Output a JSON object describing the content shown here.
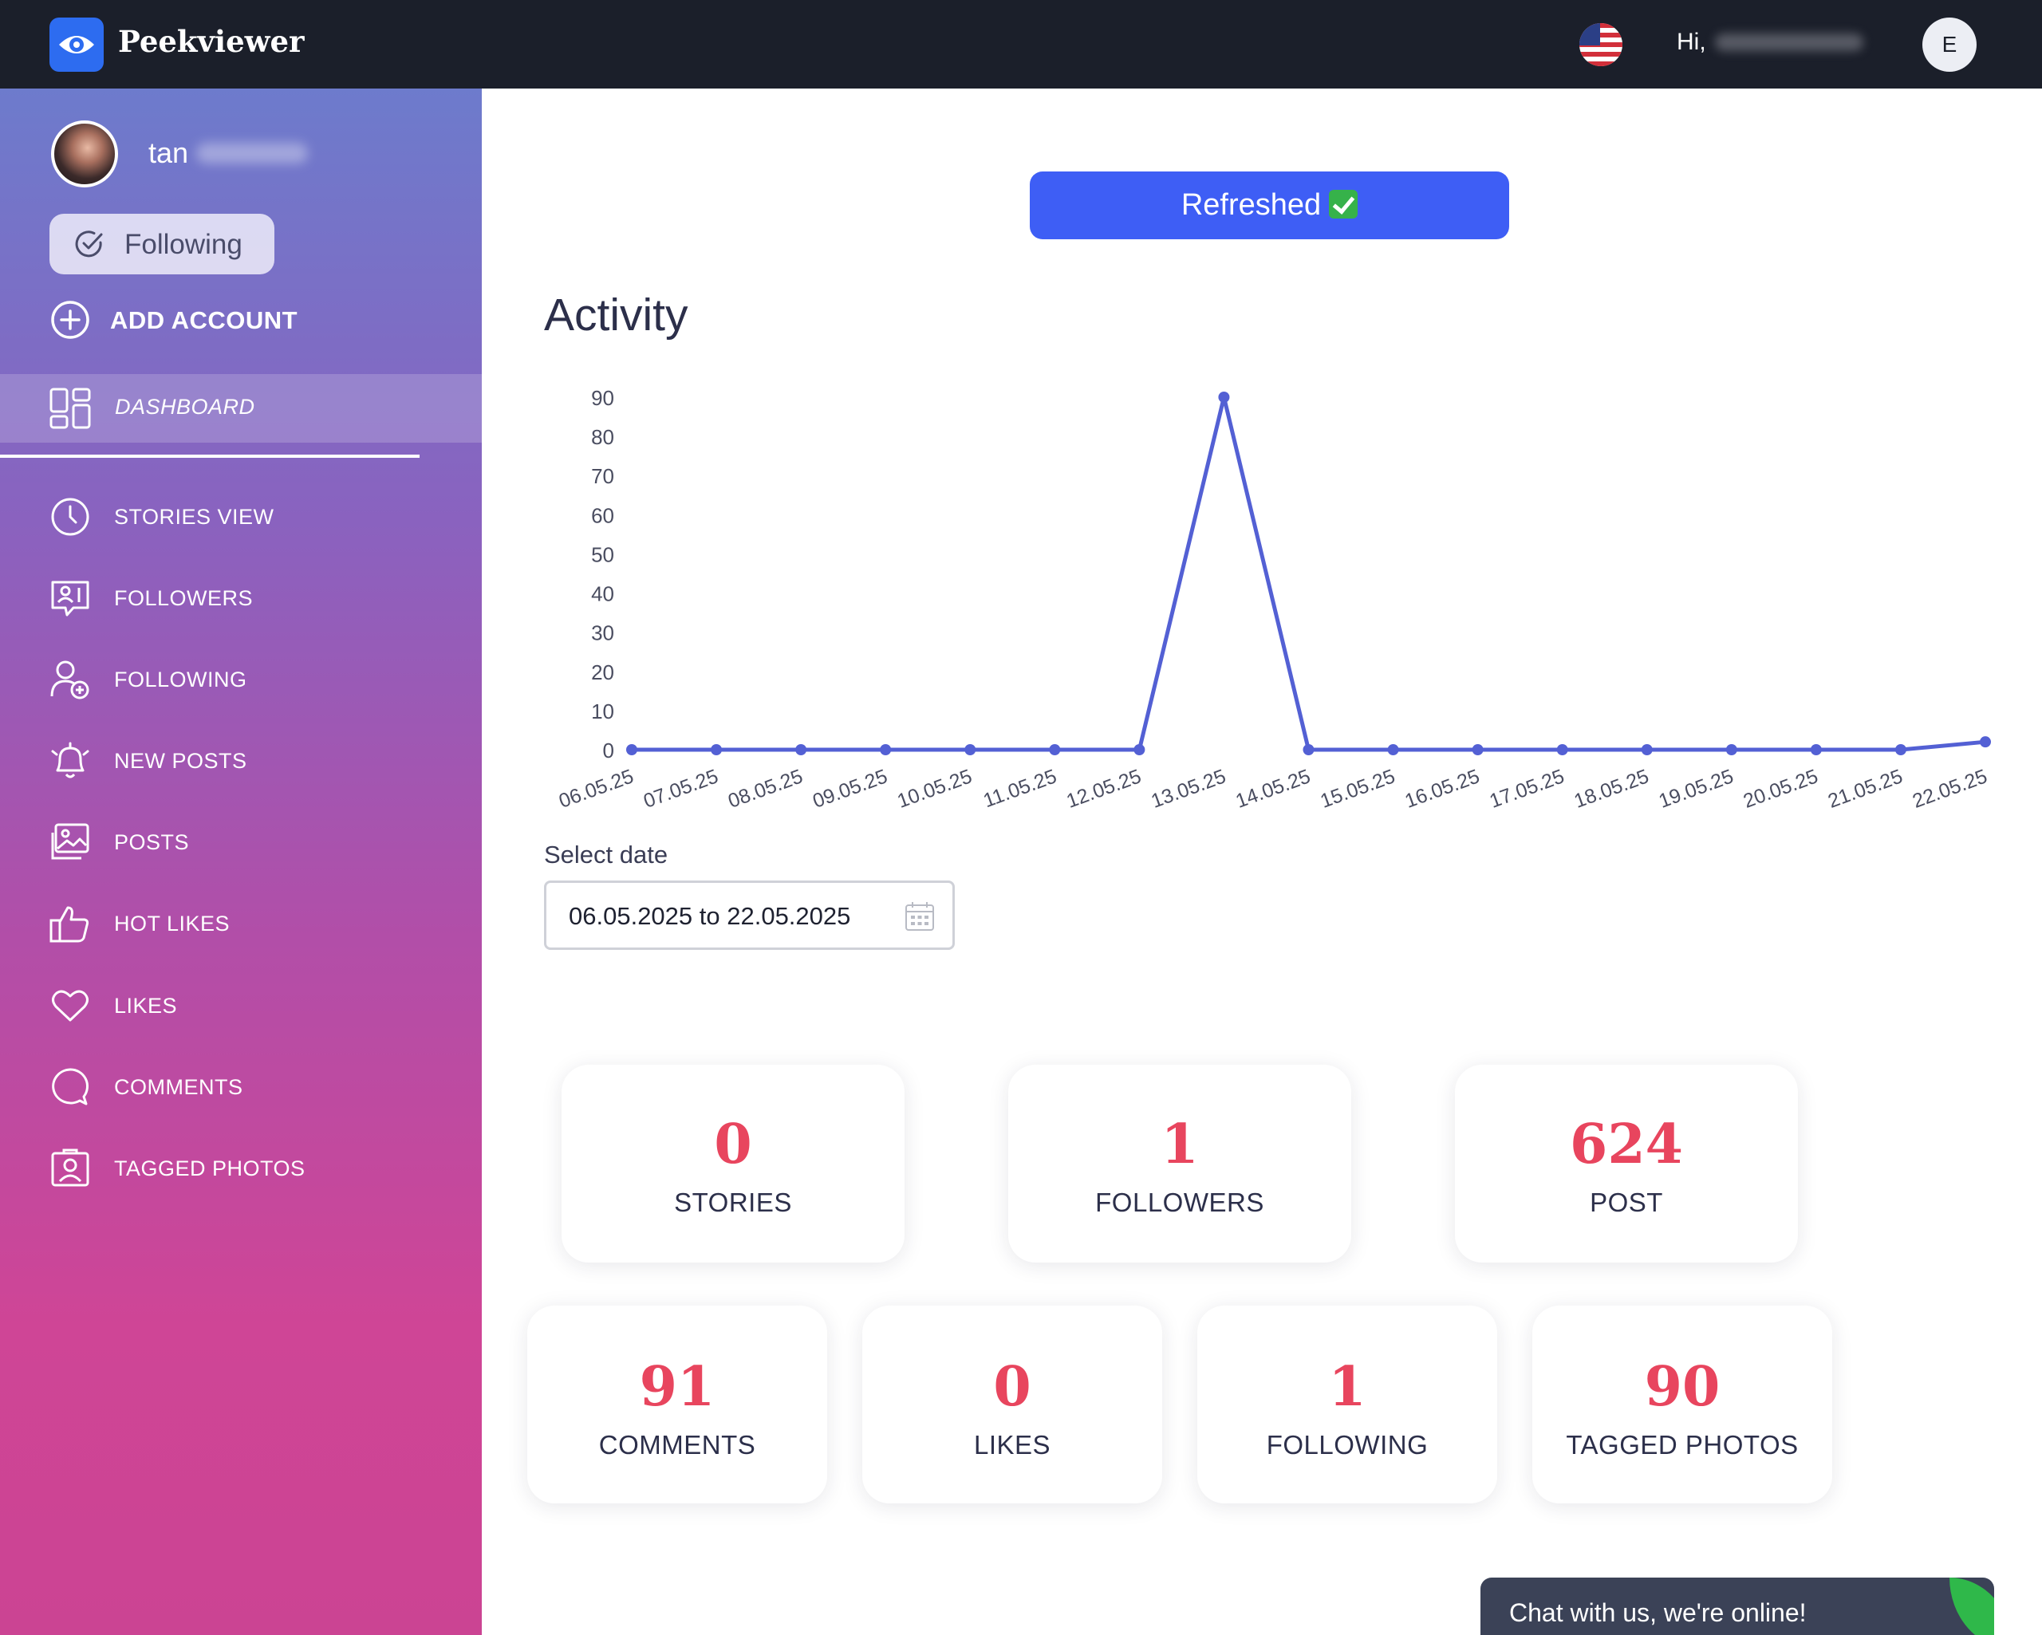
{
  "header": {
    "brand": "Peekviewer",
    "greeting": "Hi,",
    "avatar_letter": "E",
    "icons": {
      "logo": "eye-icon",
      "language": "us-flag-icon"
    }
  },
  "sidebar": {
    "profile_name": "tan",
    "follow_label": "Following",
    "add_account_label": "ADD ACCOUNT",
    "dashboard_label": "DASHBOARD",
    "items": [
      {
        "label": "STORIES VIEW",
        "icon": "clock-icon"
      },
      {
        "label": "FOLLOWERS",
        "icon": "followers-icon"
      },
      {
        "label": "FOLLOWING",
        "icon": "add-user-icon"
      },
      {
        "label": "NEW POSTS",
        "icon": "bell-icon"
      },
      {
        "label": "POSTS",
        "icon": "image-icon"
      },
      {
        "label": "HOT LIKES",
        "icon": "thumbs-up-icon"
      },
      {
        "label": "LIKES",
        "icon": "heart-icon"
      },
      {
        "label": "COMMENTS",
        "icon": "comment-icon"
      },
      {
        "label": "TAGGED PHOTOS",
        "icon": "tagged-photo-icon"
      }
    ]
  },
  "main": {
    "refresh_label": "Refreshed",
    "activity_title": "Activity",
    "select_date_label": "Select date",
    "date_range": "06.05.2025 to 22.05.2025",
    "stats_row1": [
      {
        "value": "0",
        "label": "STORIES"
      },
      {
        "value": "1",
        "label": "FOLLOWERS"
      },
      {
        "value": "624",
        "label": "POST"
      }
    ],
    "stats_row2": [
      {
        "value": "91",
        "label": "COMMENTS"
      },
      {
        "value": "0",
        "label": "LIKES"
      },
      {
        "value": "1",
        "label": "FOLLOWING"
      },
      {
        "value": "90",
        "label": "TAGGED PHOTOS"
      }
    ]
  },
  "chat": {
    "label": "Chat with us, we're online!"
  },
  "colors": {
    "accent": "#3e5ef5",
    "line": "#5360d4",
    "stat": "#e8455e",
    "topbar": "#1b1f2a"
  },
  "chart_data": {
    "type": "line",
    "x": [
      "06.05.25",
      "07.05.25",
      "08.05.25",
      "09.05.25",
      "10.05.25",
      "11.05.25",
      "12.05.25",
      "13.05.25",
      "14.05.25",
      "15.05.25",
      "16.05.25",
      "17.05.25",
      "18.05.25",
      "19.05.25",
      "20.05.25",
      "21.05.25",
      "22.05.25"
    ],
    "series": [
      {
        "values": [
          0,
          0,
          0,
          0,
          0,
          0,
          0,
          90,
          0,
          0,
          0,
          0,
          0,
          0,
          0,
          0,
          2
        ]
      }
    ],
    "ylim": [
      0,
      90
    ],
    "yticks": [
      0,
      10,
      20,
      30,
      40,
      50,
      60,
      70,
      80,
      90
    ],
    "grid": false
  }
}
